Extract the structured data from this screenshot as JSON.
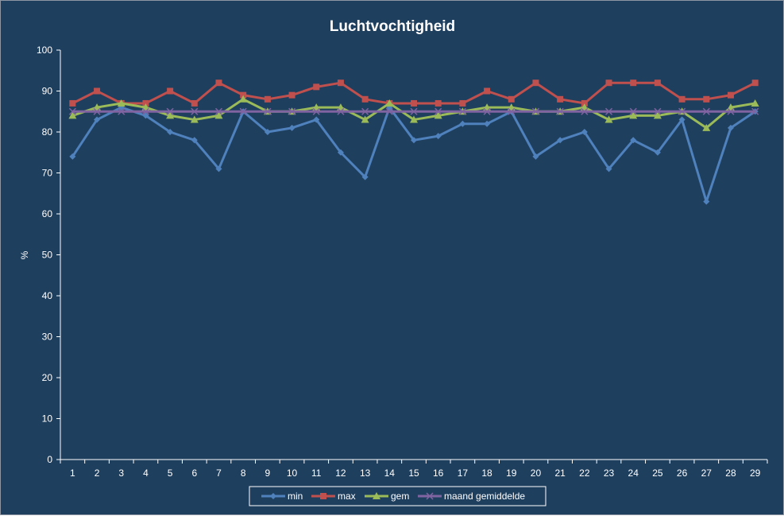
{
  "chart_data": {
    "type": "line",
    "title": "Luchtvochtigheid",
    "xlabel": "",
    "ylabel": "%",
    "ylim": [
      0,
      100
    ],
    "yticks": [
      0,
      10,
      20,
      30,
      40,
      50,
      60,
      70,
      80,
      90,
      100
    ],
    "grid": false,
    "legend_position": "bottom",
    "categories": [
      1,
      2,
      3,
      4,
      5,
      6,
      7,
      8,
      9,
      10,
      11,
      12,
      13,
      14,
      15,
      16,
      17,
      18,
      19,
      20,
      21,
      22,
      23,
      24,
      25,
      26,
      27,
      28,
      29
    ],
    "series": [
      {
        "name": "min",
        "color": "#4f81bd",
        "marker": "diamond",
        "values": [
          74,
          83,
          86,
          84,
          80,
          78,
          71,
          85,
          80,
          81,
          83,
          75,
          69,
          86,
          78,
          79,
          82,
          82,
          85,
          74,
          78,
          80,
          71,
          78,
          75,
          83,
          63,
          81,
          85
        ]
      },
      {
        "name": "max",
        "color": "#c0504d",
        "marker": "square",
        "values": [
          87,
          90,
          87,
          87,
          90,
          87,
          92,
          89,
          88,
          89,
          91,
          92,
          88,
          87,
          87,
          87,
          87,
          90,
          88,
          92,
          88,
          87,
          92,
          92,
          92,
          88,
          88,
          89,
          92
        ]
      },
      {
        "name": "gem",
        "color": "#9bbb59",
        "marker": "triangle",
        "values": [
          84,
          86,
          87,
          86,
          84,
          83,
          84,
          88,
          85,
          85,
          86,
          86,
          83,
          87,
          83,
          84,
          85,
          86,
          86,
          85,
          85,
          86,
          83,
          84,
          84,
          85,
          81,
          86,
          87
        ]
      },
      {
        "name": "maand gemiddelde",
        "color": "#8064a2",
        "marker": "x",
        "values": [
          85,
          85,
          85,
          85,
          85,
          85,
          85,
          85,
          85,
          85,
          85,
          85,
          85,
          85,
          85,
          85,
          85,
          85,
          85,
          85,
          85,
          85,
          85,
          85,
          85,
          85,
          85,
          85,
          85
        ]
      }
    ]
  }
}
